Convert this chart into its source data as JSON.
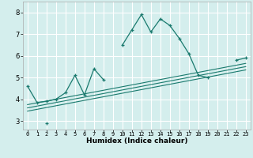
{
  "xlabel": "Humidex (Indice chaleur)",
  "background_color": "#d4eeed",
  "grid_color": "#ffffff",
  "line_color": "#1a7a6e",
  "x_values": [
    0,
    1,
    2,
    3,
    4,
    5,
    6,
    7,
    8,
    9,
    10,
    11,
    12,
    13,
    14,
    15,
    16,
    17,
    18,
    19,
    20,
    21,
    22,
    23
  ],
  "series_main": [
    4.6,
    3.85,
    3.9,
    4.0,
    4.3,
    5.1,
    4.2,
    5.4,
    4.9,
    null,
    6.5,
    7.2,
    7.9,
    7.1,
    7.7,
    7.4,
    6.8,
    6.1,
    5.1,
    5.0,
    null,
    null,
    5.8,
    5.9
  ],
  "series_low_x": [
    2
  ],
  "series_low_y": [
    2.9
  ],
  "line1_x": [
    0,
    23
  ],
  "line1_y": [
    3.75,
    5.65
  ],
  "line2_x": [
    0,
    23
  ],
  "line2_y": [
    3.6,
    5.5
  ],
  "line3_x": [
    0,
    23
  ],
  "line3_y": [
    3.45,
    5.35
  ],
  "ylim": [
    2.6,
    8.5
  ],
  "xlim": [
    -0.5,
    23.5
  ],
  "yticks": [
    3,
    4,
    5,
    6,
    7,
    8
  ],
  "xticks": [
    0,
    1,
    2,
    3,
    4,
    5,
    6,
    7,
    8,
    9,
    10,
    11,
    12,
    13,
    14,
    15,
    16,
    17,
    18,
    19,
    20,
    21,
    22,
    23
  ]
}
